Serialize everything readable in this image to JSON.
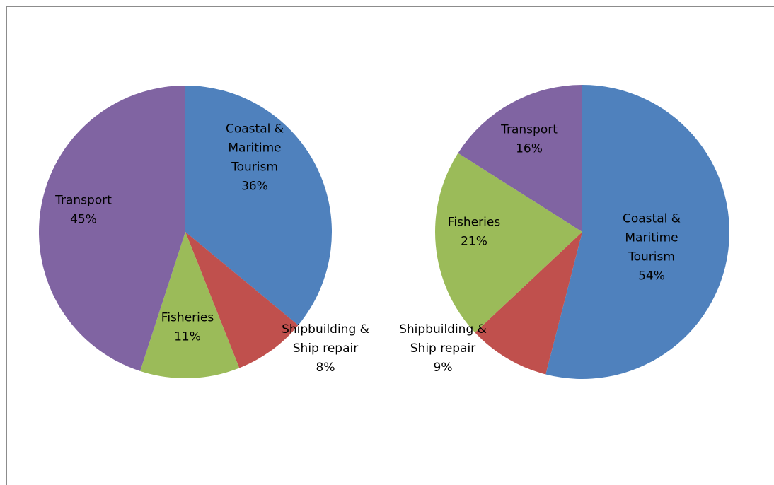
{
  "chart_data": [
    {
      "type": "pie",
      "slices": [
        {
          "label_lines": [
            "Coastal &",
            "Maritime",
            "Tourism",
            "36%"
          ],
          "value": 36,
          "color": "#4f81bd"
        },
        {
          "label_lines": [
            "Shipbuilding &",
            "Ship repair",
            "8%"
          ],
          "value": 8,
          "color": "#c0504d"
        },
        {
          "label_lines": [
            "Fisheries",
            "11%"
          ],
          "value": 11,
          "color": "#9bbb59"
        },
        {
          "label_lines": [
            "Transport",
            "45%"
          ],
          "value": 45,
          "color": "#8064a2"
        }
      ]
    },
    {
      "type": "pie",
      "slices": [
        {
          "label_lines": [
            "Coastal &",
            "Maritime",
            "Tourism",
            "54%"
          ],
          "value": 54,
          "color": "#4f81bd"
        },
        {
          "label_lines": [
            "Shipbuilding &",
            "Ship repair",
            "9%"
          ],
          "value": 9,
          "color": "#c0504d"
        },
        {
          "label_lines": [
            "Fisheries",
            "21%"
          ],
          "value": 21,
          "color": "#9bbb59"
        },
        {
          "label_lines": [
            "Transport",
            "16%"
          ],
          "value": 16,
          "color": "#8064a2"
        }
      ]
    }
  ]
}
